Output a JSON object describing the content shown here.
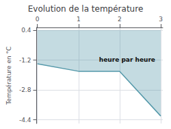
{
  "chart_data": {
    "type": "line",
    "title": "Evolution de la température",
    "ylabel": "Température en °C",
    "x": [
      0,
      1,
      2,
      3
    ],
    "values": [
      -1.4,
      -1.8,
      -1.8,
      -4.2
    ],
    "fill_to": 0.4,
    "color": "#5599aa",
    "xlim": [
      -0.02,
      3.05
    ],
    "xticks": [
      0,
      1,
      2,
      3
    ],
    "ylim": [
      -4.6,
      0.55
    ],
    "yticks": [
      0.4,
      -1.2,
      -2.8,
      -4.4
    ],
    "grid": true,
    "annotations": [
      {
        "text": "heure par heure",
        "x": 1.5,
        "y": -1.0
      }
    ]
  }
}
